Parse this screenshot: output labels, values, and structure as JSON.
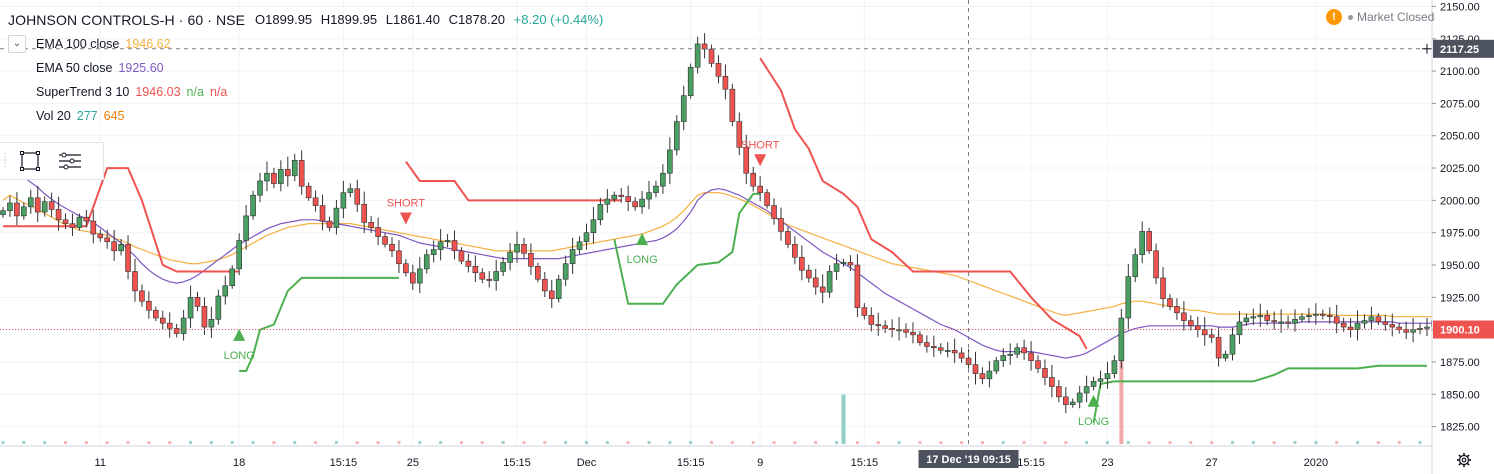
{
  "header": {
    "symbol": "JOHNSON CONTROLS-H · 60 · NSE",
    "ohlc": {
      "o": "O1899.95",
      "h": "H1899.95",
      "l": "L1861.40",
      "c": "C1878.20",
      "change": "+8.20 (+0.44%)"
    },
    "market_status": "Market Closed"
  },
  "indicators": [
    {
      "name": "EMA 100 close",
      "values": [
        "1946.62"
      ],
      "colors": [
        "#f5b041"
      ]
    },
    {
      "name": "EMA 50 close",
      "values": [
        "1925.60"
      ],
      "colors": [
        "#7e57c2"
      ]
    },
    {
      "name": "SuperTrend 3 10",
      "values": [
        "1946.03",
        "n/a",
        "n/a"
      ],
      "colors": [
        "#ef5350",
        "#4caf50",
        "#ef5350"
      ]
    },
    {
      "name": "Vol 20",
      "values": [
        "277",
        "645"
      ],
      "colors": [
        "#26a69a",
        "#f57c00"
      ]
    }
  ],
  "colors": {
    "up": "#26a69a",
    "up_body": "#4a9f63",
    "down": "#ef5350",
    "ema100": "#f5b041",
    "ema50": "#7e57c2",
    "st_up": "#4caf50",
    "st_down": "#ef5350"
  },
  "icons": [
    "chevron-down-icon",
    "rectangle-select-icon",
    "list-settings-icon",
    "warning-icon",
    "gear-icon",
    "crosshair-icon"
  ],
  "chart_data": {
    "type": "candlestick",
    "ylim": [
      1810,
      2155
    ],
    "y_ticks": [
      2150,
      2125,
      2100,
      2075,
      2050,
      2025,
      2000,
      1975,
      1950,
      1925,
      1900,
      1875,
      1850,
      1825
    ],
    "y_tick_labels": [
      "2150.00",
      "2125.00",
      "2100.00",
      "2075.00",
      "2050.00",
      "2025.00",
      "2000.00",
      "1975.00",
      "1950.00",
      "1925.00",
      "1900.00",
      "1875.00",
      "1850.00",
      "1825.00"
    ],
    "x_range": [
      0,
      205
    ],
    "x_ticks": [
      {
        "x": 14,
        "label": "11"
      },
      {
        "x": 34,
        "label": "18"
      },
      {
        "x": 49,
        "label": "15:15"
      },
      {
        "x": 59,
        "label": "25"
      },
      {
        "x": 74,
        "label": "15:15"
      },
      {
        "x": 84,
        "label": "Dec"
      },
      {
        "x": 99,
        "label": "15:15"
      },
      {
        "x": 109,
        "label": "9"
      },
      {
        "x": 124,
        "label": "15:15"
      },
      {
        "x": 148,
        "label": "15:15"
      },
      {
        "x": 159,
        "label": "23"
      },
      {
        "x": 174,
        "label": "27"
      },
      {
        "x": 189,
        "label": "2020"
      }
    ],
    "crosshair": {
      "x": 139,
      "y": 2117.25,
      "x_label": "17 Dec '19   09:15",
      "y_label": "2117.25"
    },
    "last_price": {
      "value": 1900.1,
      "label": "1900.10"
    },
    "closes": [
      1992,
      1998,
      1988,
      1995,
      2002,
      1991,
      1999,
      1993,
      1985,
      1982,
      1979,
      1987,
      1984,
      1974,
      1971,
      1968,
      1961,
      1966,
      1945,
      1930,
      1922,
      1915,
      1909,
      1905,
      1901,
      1897,
      1909,
      1925,
      1918,
      1902,
      1908,
      1926,
      1934,
      1947,
      1969,
      1988,
      2004,
      2015,
      2021,
      2013,
      2024,
      2019,
      2031,
      2011,
      2002,
      1996,
      1984,
      1979,
      1994,
      2006,
      2009,
      1997,
      1983,
      1979,
      1972,
      1966,
      1961,
      1951,
      1944,
      1936,
      1947,
      1958,
      1962,
      1968,
      1969,
      1961,
      1953,
      1949,
      1944,
      1939,
      1938,
      1945,
      1952,
      1960,
      1966,
      1959,
      1949,
      1939,
      1930,
      1924,
      1939,
      1951,
      1962,
      1968,
      1975,
      1985,
      1997,
      2001,
      2004,
      2003,
      1999,
      1995,
      2001,
      2006,
      2011,
      2021,
      2039,
      2061,
      2081,
      2103,
      2121,
      2117,
      2106,
      2096,
      2086,
      2061,
      2041,
      2021,
      2011,
      2006,
      1996,
      1986,
      1976,
      1966,
      1956,
      1946,
      1940,
      1933,
      1929,
      1945,
      1951,
      1952,
      1950,
      1917,
      1911,
      1904,
      1903,
      1901,
      1900,
      1900,
      1898,
      1896,
      1890,
      1887,
      1886,
      1884,
      1884,
      1882,
      1878,
      1873,
      1866,
      1862,
      1868,
      1876,
      1880,
      1881,
      1886,
      1882,
      1876,
      1870,
      1863,
      1856,
      1848,
      1842,
      1844,
      1851,
      1856,
      1860,
      1862,
      1866,
      1876,
      1909,
      1941,
      1958,
      1976,
      1961,
      1940,
      1924,
      1918,
      1913,
      1907,
      1903,
      1900,
      1896,
      1894,
      1878,
      1881,
      1896,
      1906,
      1909,
      1910,
      1911,
      1907,
      1906,
      1906,
      1905,
      1908,
      1910,
      1911,
      1912,
      1911,
      1910,
      1905,
      1902,
      1900,
      1905,
      1907,
      1910,
      1906,
      1904,
      1902,
      1900,
      1898,
      1900,
      1901,
      1902,
      1907,
      1910,
      1900
    ],
    "ema100": [
      2000,
      2004,
      2001,
      1998,
      1996,
      1993,
      1990,
      1987,
      1984,
      1981,
      1979,
      1977,
      1976,
      1975,
      1974,
      1973,
      1971,
      1969,
      1967,
      1964,
      1962,
      1960,
      1958,
      1956,
      1954,
      1953,
      1952,
      1951,
      1951,
      1952,
      1953,
      1954,
      1956,
      1958,
      1961,
      1964,
      1967,
      1970,
      1973,
      1975,
      1977,
      1979,
      1980,
      1981,
      1982,
      1982,
      1982,
      1982,
      1982,
      1982,
      1982,
      1981,
      1980,
      1979,
      1978,
      1977,
      1976,
      1975,
      1974,
      1973,
      1972,
      1971,
      1970,
      1969,
      1968,
      1967,
      1966,
      1965,
      1964,
      1963,
      1962,
      1961,
      1961,
      1961,
      1961,
      1961,
      1961,
      1961,
      1961,
      1961,
      1962,
      1963,
      1964,
      1965,
      1966,
      1967,
      1968,
      1969,
      1970,
      1971,
      1972,
      1973,
      1974,
      1976,
      1978,
      1980,
      1983,
      1987,
      1992,
      1998,
      2004,
      2006,
      2006,
      2006,
      2005,
      2003,
      2001,
      1999,
      1996,
      1993,
      1990,
      1987,
      1984,
      1981,
      1979,
      1977,
      1975,
      1973,
      1971,
      1969,
      1967,
      1965,
      1963,
      1961,
      1959,
      1957,
      1955,
      1953,
      1951,
      1950,
      1949,
      1948,
      1947,
      1946,
      1945,
      1944,
      1943,
      1942,
      1940,
      1938,
      1936,
      1934,
      1932,
      1930,
      1928,
      1926,
      1924,
      1922,
      1920,
      1918,
      1916,
      1914,
      1912,
      1911,
      1912,
      1913,
      1914,
      1915,
      1916,
      1917,
      1918,
      1920,
      1921,
      1922,
      1922,
      1921,
      1920,
      1919,
      1918,
      1917,
      1916,
      1915,
      1915,
      1914,
      1913,
      1912,
      1912,
      1912,
      1912,
      1912,
      1912,
      1912,
      1912,
      1912,
      1912,
      1912,
      1912,
      1912,
      1912,
      1912,
      1912,
      1912,
      1911,
      1911,
      1911,
      1911,
      1911,
      1911,
      1911,
      1911,
      1910,
      1910,
      1910,
      1910,
      1910,
      1910,
      1910,
      1910
    ],
    "ema50": [
      2032,
      2028,
      2023,
      2018,
      2014,
      2010,
      2005,
      2001,
      1997,
      1994,
      1991,
      1988,
      1986,
      1983,
      1979,
      1975,
      1971,
      1967,
      1962,
      1957,
      1951,
      1946,
      1942,
      1939,
      1937,
      1936,
      1937,
      1939,
      1942,
      1946,
      1950,
      1954,
      1958,
      1962,
      1966,
      1969,
      1972,
      1975,
      1978,
      1980,
      1982,
      1983,
      1984,
      1985,
      1985,
      1985,
      1984,
      1983,
      1982,
      1981,
      1980,
      1979,
      1978,
      1977,
      1976,
      1975,
      1974,
      1973,
      1971,
      1969,
      1967,
      1966,
      1965,
      1964,
      1963,
      1962,
      1961,
      1960,
      1959,
      1958,
      1957,
      1956,
      1955,
      1955,
      1955,
      1955,
      1955,
      1955,
      1955,
      1955,
      1955,
      1956,
      1957,
      1958,
      1959,
      1960,
      1961,
      1962,
      1963,
      1964,
      1965,
      1966,
      1967,
      1968,
      1969,
      1971,
      1974,
      1978,
      1984,
      1991,
      2000,
      2005,
      2008,
      2009,
      2008,
      2006,
      2004,
      2001,
      1998,
      1995,
      1992,
      1988,
      1984,
      1980,
      1976,
      1972,
      1968,
      1964,
      1960,
      1957,
      1954,
      1951,
      1948,
      1944,
      1940,
      1936,
      1932,
      1928,
      1925,
      1922,
      1919,
      1916,
      1913,
      1910,
      1907,
      1904,
      1902,
      1900,
      1897,
      1894,
      1891,
      1888,
      1886,
      1884,
      1883,
      1883,
      1883,
      1883,
      1883,
      1882,
      1881,
      1880,
      1879,
      1878,
      1879,
      1880,
      1882,
      1885,
      1888,
      1891,
      1894,
      1897,
      1899,
      1901,
      1902,
      1903,
      1903,
      1903,
      1903,
      1903,
      1903,
      1903,
      1903,
      1903,
      1903,
      1902,
      1902,
      1902,
      1903,
      1904,
      1905,
      1905,
      1905,
      1905,
      1905,
      1905,
      1905,
      1906,
      1906,
      1906,
      1906,
      1906,
      1906,
      1906,
      1906,
      1906,
      1906,
      1906,
      1906,
      1906,
      1906,
      1905,
      1905,
      1905,
      1905,
      1905,
      1905,
      1905
    ],
    "supertrend_down": [
      [
        0,
        1980
      ],
      [
        6,
        1980
      ],
      [
        12,
        1980
      ],
      [
        15,
        2025
      ],
      [
        18,
        2025
      ],
      [
        20,
        2000
      ],
      [
        23,
        1950
      ],
      [
        25,
        1945
      ],
      [
        34,
        1945
      ],
      [
        34,
        null
      ],
      [
        57,
        null
      ],
      [
        58,
        2030
      ],
      [
        60,
        2015
      ],
      [
        62,
        2015
      ],
      [
        65,
        2015
      ],
      [
        67,
        2000
      ],
      [
        70,
        2000
      ],
      [
        75,
        2000
      ],
      [
        80,
        2000
      ],
      [
        85,
        2000
      ],
      [
        89,
        2000
      ],
      [
        89,
        null
      ],
      [
        108,
        null
      ],
      [
        109,
        2110
      ],
      [
        112,
        2085
      ],
      [
        114,
        2055
      ],
      [
        116,
        2040
      ],
      [
        118,
        2015
      ],
      [
        121,
        2005
      ],
      [
        123,
        1995
      ],
      [
        125,
        1970
      ],
      [
        128,
        1960
      ],
      [
        131,
        1945
      ],
      [
        140,
        1945
      ],
      [
        145,
        1945
      ],
      [
        148,
        1925
      ],
      [
        151,
        1908
      ],
      [
        155,
        1895
      ],
      [
        156,
        1885
      ]
    ],
    "supertrend_up": [
      [
        34,
        1868
      ],
      [
        35,
        1868
      ],
      [
        36,
        1880
      ],
      [
        37,
        1900
      ],
      [
        39,
        1904
      ],
      [
        41,
        1930
      ],
      [
        43,
        1940
      ],
      [
        57,
        1940
      ],
      [
        57,
        null
      ],
      [
        87,
        null
      ],
      [
        88,
        1970
      ],
      [
        90,
        1920
      ],
      [
        95,
        1920
      ],
      [
        97,
        1935
      ],
      [
        100,
        1950
      ],
      [
        103,
        1952
      ],
      [
        105,
        1960
      ],
      [
        106,
        1990
      ],
      [
        108,
        2005
      ],
      [
        109,
        2005
      ],
      [
        109,
        null
      ],
      [
        156,
        null
      ],
      [
        157,
        1828
      ],
      [
        158,
        1858
      ],
      [
        160,
        1860
      ],
      [
        170,
        1860
      ],
      [
        180,
        1860
      ],
      [
        183,
        1865
      ],
      [
        185,
        1870
      ],
      [
        190,
        1870
      ],
      [
        195,
        1870
      ],
      [
        198,
        1872
      ],
      [
        205,
        1872
      ]
    ],
    "signals": [
      {
        "type": "long",
        "x": 34,
        "y": 1896,
        "label": "LONG"
      },
      {
        "type": "short",
        "x": 58,
        "y": 1986,
        "label": "SHORT"
      },
      {
        "type": "long",
        "x": 92,
        "y": 1970,
        "label": "LONG"
      },
      {
        "type": "short",
        "x": 109,
        "y": 2031,
        "label": "SHORT"
      },
      {
        "type": "long",
        "x": 157,
        "y": 1845,
        "label": "LONG"
      }
    ],
    "volume_spikes": [
      {
        "x": 121,
        "value": 0.45,
        "dir": "up"
      },
      {
        "x": 161,
        "value": 0.82,
        "dir": "down"
      }
    ]
  }
}
